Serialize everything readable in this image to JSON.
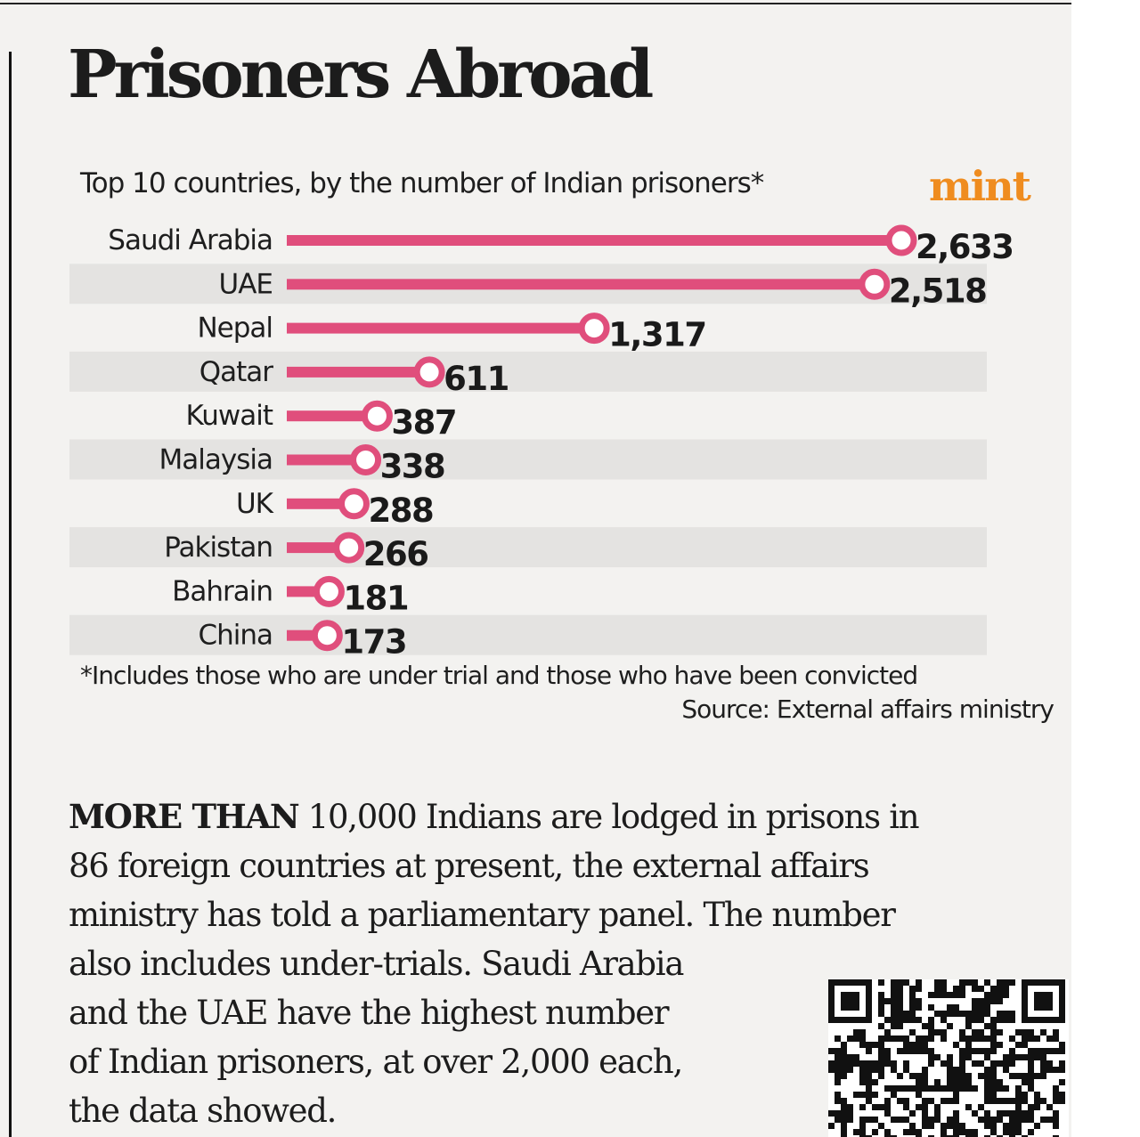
{
  "title": "Prisoners Abroad",
  "subtitle": "Top 10 countries, by the number of Indian prisoners*",
  "logo": "mint",
  "footnote": "*Includes those who are under trial and those who have been convicted",
  "source": "Source: External affairs ministry",
  "colors": {
    "bar": "#e04e7c",
    "stripe": "#e4e3e1",
    "logo": "#ef8c1f"
  },
  "chart_data": {
    "type": "bar",
    "orientation": "horizontal",
    "categories": [
      "Saudi Arabia",
      "UAE",
      "Nepal",
      "Qatar",
      "Kuwait",
      "Malaysia",
      "UK",
      "Pakistan",
      "Bahrain",
      "China"
    ],
    "values": [
      2633,
      2518,
      1317,
      611,
      387,
      338,
      288,
      266,
      181,
      173
    ],
    "value_labels": [
      "2,633",
      "2,518",
      "1,317",
      "611",
      "387",
      "338",
      "288",
      "266",
      "181",
      "173"
    ],
    "title": "Prisoners Abroad",
    "xlabel": "",
    "ylabel": "",
    "grid": false
  },
  "body": {
    "lead": "MORE THAN",
    "lines": [
      " 10,000 Indians are lodged in prisons in",
      "86 foreign countries at present, the external affairs",
      "ministry has told a parliamentary panel. The number",
      "also includes under-trials. Saudi Arabia",
      "and the UAE have the highest number",
      "of Indian prisoners, at over 2,000 each,",
      "the data showed."
    ]
  },
  "qr_icon": "qr-code-icon"
}
